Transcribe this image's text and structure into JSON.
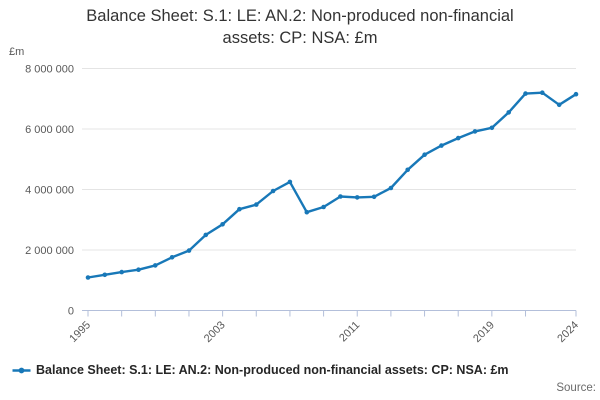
{
  "title": "Balance Sheet: S.1: LE: AN.2: Non-produced non-financial assets: CP: NSA: £m",
  "unit_label": "£m",
  "legend": {
    "series_label": "Balance Sheet: S.1: LE: AN.2: Non-produced non-financial assets: CP: NSA: £m"
  },
  "source_label": "Source:",
  "colors": {
    "line": "#1878b8",
    "axis": "#b3bfda",
    "grid": "#e4e4e4",
    "tick_text": "#595959",
    "title_text": "#333333",
    "legend_text": "#262626",
    "source_text": "#6b6b6b",
    "background": "#ffffff"
  },
  "chart_data": {
    "type": "line",
    "title": "Balance Sheet: S.1: LE: AN.2: Non-produced non-financial assets: CP: NSA: £m",
    "ylabel": "£m",
    "xlabel": "",
    "grid": "horizontal",
    "legend_position": "bottom",
    "marker": "circle",
    "xlim": [
      1995,
      2024
    ],
    "ylim": [
      0,
      8000000
    ],
    "x": [
      1995,
      1996,
      1997,
      1998,
      1999,
      2000,
      2001,
      2002,
      2003,
      2004,
      2005,
      2006,
      2007,
      2008,
      2009,
      2010,
      2011,
      2012,
      2013,
      2014,
      2015,
      2016,
      2017,
      2018,
      2019,
      2020,
      2021,
      2022,
      2023,
      2024
    ],
    "series": [
      {
        "name": "Balance Sheet: S.1: LE: AN.2: Non-produced non-financial assets: CP: NSA: £m",
        "values": [
          1090000,
          1180000,
          1270000,
          1350000,
          1490000,
          1760000,
          1980000,
          2500000,
          2850000,
          3350000,
          3500000,
          3950000,
          4250000,
          3250000,
          3420000,
          3770000,
          3740000,
          3760000,
          4050000,
          4650000,
          5150000,
          5450000,
          5700000,
          5920000,
          6040000,
          6550000,
          7170000,
          7200000,
          6800000,
          7150000
        ]
      }
    ],
    "yticks": [
      {
        "value": 0,
        "label": "0"
      },
      {
        "value": 2000000,
        "label": "2 000 000"
      },
      {
        "value": 4000000,
        "label": "4 000 000"
      },
      {
        "value": 6000000,
        "label": "6 000 000"
      },
      {
        "value": 8000000,
        "label": "8 000 000"
      }
    ],
    "xticks": [
      1995,
      1997,
      1999,
      2001,
      2003,
      2005,
      2007,
      2009,
      2011,
      2013,
      2015,
      2017,
      2019,
      2021,
      2024
    ],
    "xtick_labels": [
      1995,
      2003,
      2011,
      2019,
      2024
    ]
  }
}
